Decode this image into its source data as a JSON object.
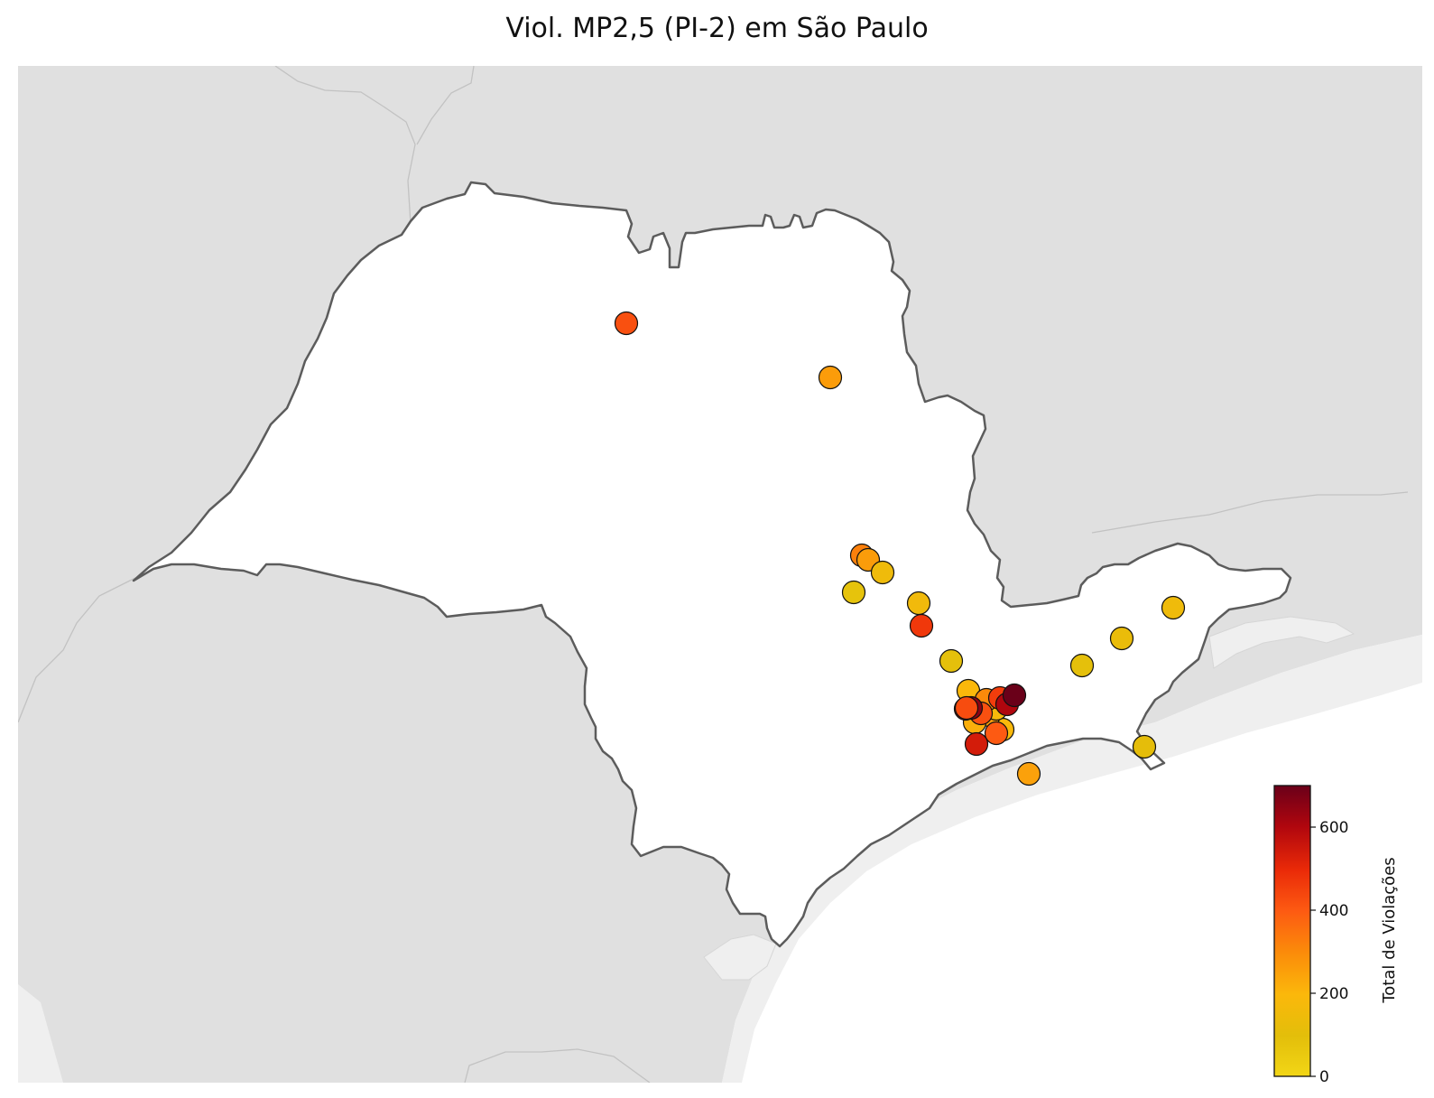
{
  "title": "Viol. MP2,5 (PI-2) em São Paulo",
  "colorbar": {
    "label": "Total de Violações",
    "min": 0,
    "max": 700,
    "ticks": [
      0,
      200,
      400,
      600
    ],
    "colors": [
      "#f2d616",
      "#e3be0a",
      "#fbb80b",
      "#fb8a0a",
      "#fd5a12",
      "#ea2a08",
      "#b0060e",
      "#6a0019"
    ]
  },
  "colors": {
    "land": "#e0e0e0",
    "state": "#ffffff",
    "border": "#5c5c5c",
    "sea": "#ffffff",
    "shelf": "#efefef"
  },
  "stations": [
    {
      "id": "s1",
      "value": 420
    },
    {
      "id": "s2",
      "value": 260
    },
    {
      "id": "s3",
      "value": 320
    },
    {
      "id": "s4",
      "value": 260
    },
    {
      "id": "s5",
      "value": 150
    },
    {
      "id": "s6",
      "value": 80
    },
    {
      "id": "s7",
      "value": 160
    },
    {
      "id": "s8",
      "value": 470
    },
    {
      "id": "s9",
      "value": 90
    },
    {
      "id": "s10",
      "value": 150
    },
    {
      "id": "s11",
      "value": 130
    },
    {
      "id": "s12",
      "value": 90
    },
    {
      "id": "s13",
      "value": 110
    },
    {
      "id": "s14",
      "value": 250
    },
    {
      "id": "s15",
      "value": 200
    },
    {
      "id": "s16",
      "value": 170
    },
    {
      "id": "s17",
      "value": 190
    },
    {
      "id": "s18",
      "value": 260
    },
    {
      "id": "s19",
      "value": 220
    },
    {
      "id": "s20",
      "value": 180
    },
    {
      "id": "s21",
      "value": 300
    },
    {
      "id": "s22",
      "value": 420
    },
    {
      "id": "s23",
      "value": 400
    },
    {
      "id": "s24",
      "value": 460
    },
    {
      "id": "s25",
      "value": 600
    },
    {
      "id": "s26",
      "value": 540
    },
    {
      "id": "s27",
      "value": 650
    },
    {
      "id": "s28",
      "value": 700
    },
    {
      "id": "s29",
      "value": 430
    },
    {
      "id": "s30",
      "value": 540
    }
  ]
}
